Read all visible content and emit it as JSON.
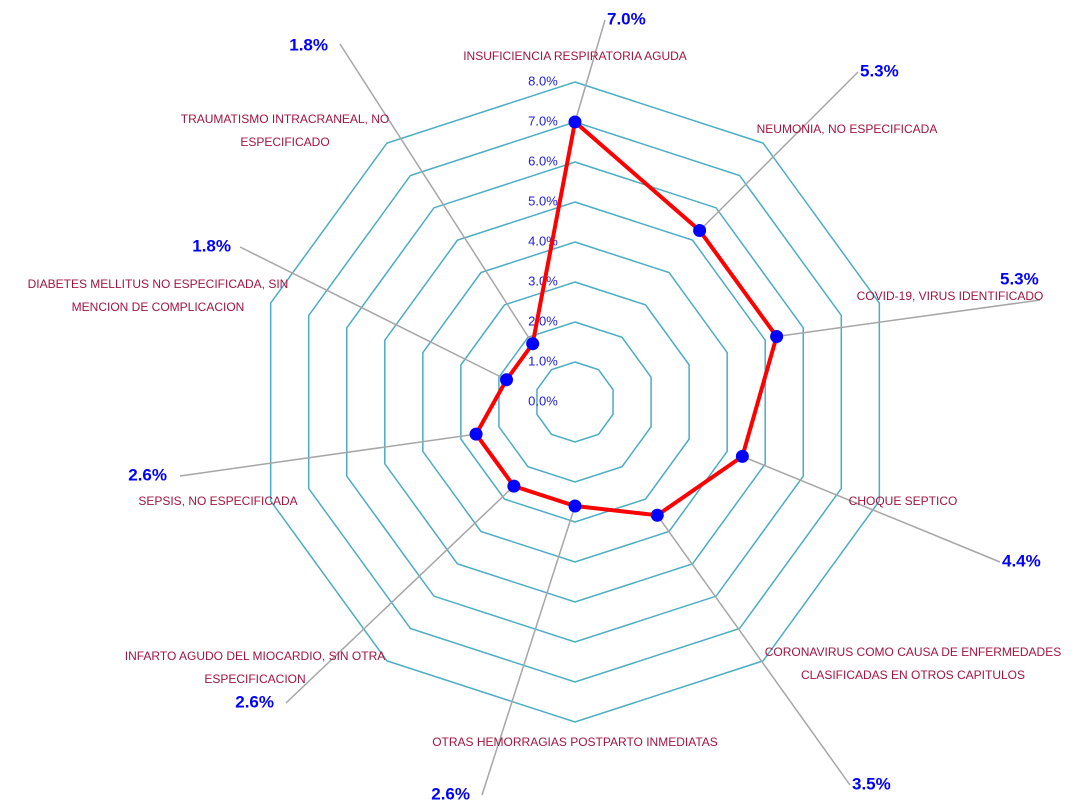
{
  "chart_data": {
    "type": "radar",
    "categories": [
      "INSUFICIENCIA RESPIRATORIA AGUDA",
      "NEUMONIA, NO ESPECIFICADA",
      "COVID-19, VIRUS IDENTIFICADO",
      "CHOQUE SEPTICO",
      "CORONAVIRUS COMO CAUSA DE ENFERMEDADES CLASIFICADAS EN OTROS CAPITULOS",
      "OTRAS HEMORRAGIAS POSTPARTO INMEDIATAS",
      "INFARTO AGUDO DEL MIOCARDIO, SIN OTRA ESPECIFICACION",
      "SEPSIS, NO ESPECIFICADA",
      "DIABETES MELLITUS NO ESPECIFICADA, SIN MENCION DE COMPLICACION",
      "TRAUMATISMO INTRACRANEAL, NO ESPECIFICADO"
    ],
    "values": [
      7.0,
      5.3,
      5.3,
      4.4,
      3.5,
      2.6,
      2.6,
      2.6,
      1.8,
      1.8
    ],
    "value_labels": [
      "7.0%",
      "5.3%",
      "5.3%",
      "4.4%",
      "3.5%",
      "2.6%",
      "2.6%",
      "2.6%",
      "1.8%",
      "1.8%"
    ],
    "color": "#ff0000",
    "marker_color": "#0000ff",
    "grid_color": "#4bacc6",
    "ylim": [
      0,
      8
    ],
    "yticks": [
      {
        "value": 0,
        "label": "0.0%"
      },
      {
        "value": 1,
        "label": "1.0%"
      },
      {
        "value": 2,
        "label": "2.0%"
      },
      {
        "value": 3,
        "label": "3.0%"
      },
      {
        "value": 4,
        "label": "4.0%"
      },
      {
        "value": 5,
        "label": "5.0%"
      },
      {
        "value": 6,
        "label": "6.0%"
      },
      {
        "value": 7,
        "label": "7.0%"
      },
      {
        "value": 8,
        "label": "8.0%"
      }
    ],
    "grid": true
  }
}
